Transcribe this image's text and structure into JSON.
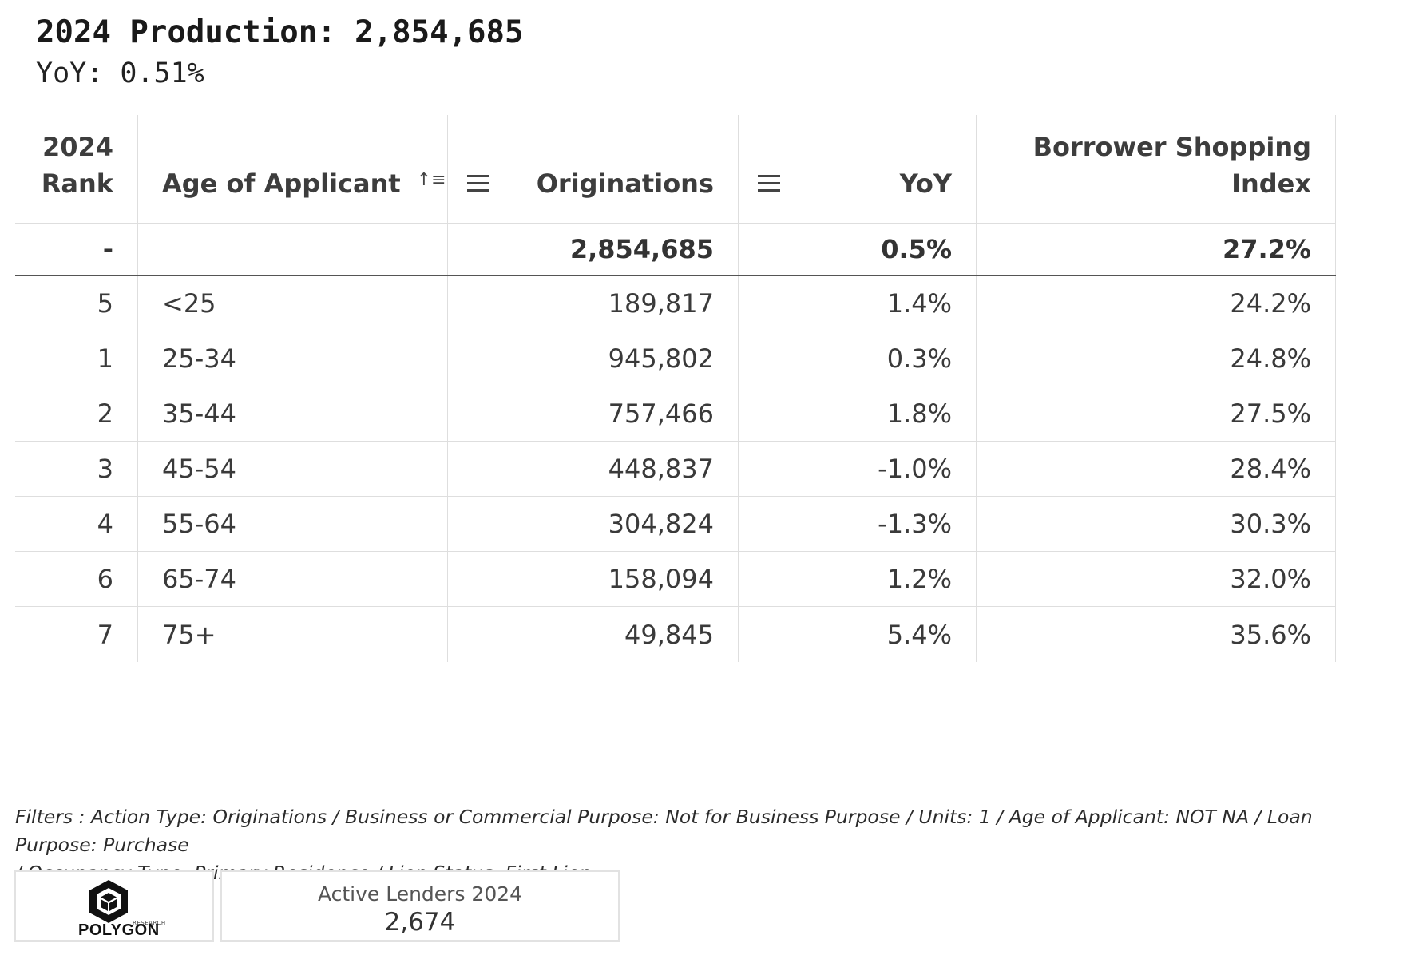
{
  "header": {
    "title": "2024 Production: 2,854,685",
    "subtitle": "YoY: 0.51%"
  },
  "table": {
    "columns": {
      "rank_line1": "2024",
      "rank_line2": "Rank",
      "age": "Age of Applicant",
      "originations": "Originations",
      "yoy": "YoY",
      "bsi_line1": "Borrower Shopping",
      "bsi_line2": "Index"
    },
    "total": {
      "rank": "-",
      "age": "",
      "originations": "2,854,685",
      "yoy": "0.5%",
      "bsi": "27.2%"
    },
    "rows": [
      {
        "rank": "5",
        "age": "<25",
        "originations": "189,817",
        "yoy": "1.4%",
        "bsi": "24.2%"
      },
      {
        "rank": "1",
        "age": "25-34",
        "originations": "945,802",
        "yoy": "0.3%",
        "bsi": "24.8%"
      },
      {
        "rank": "2",
        "age": "35-44",
        "originations": "757,466",
        "yoy": "1.8%",
        "bsi": "27.5%"
      },
      {
        "rank": "3",
        "age": "45-54",
        "originations": "448,837",
        "yoy": "-1.0%",
        "bsi": "28.4%"
      },
      {
        "rank": "4",
        "age": "55-64",
        "originations": "304,824",
        "yoy": "-1.3%",
        "bsi": "30.3%"
      },
      {
        "rank": "6",
        "age": "65-74",
        "originations": "158,094",
        "yoy": "1.2%",
        "bsi": "32.0%"
      },
      {
        "rank": "7",
        "age": "75+",
        "originations": "49,845",
        "yoy": "5.4%",
        "bsi": "35.6%"
      }
    ]
  },
  "filters": {
    "line1": "Filters : Action Type: Originations / Business or Commercial Purpose: Not for Business Purpose / Units: 1 / Age of Applicant: NOT NA / Loan Purpose: Purchase",
    "line2": "/ Occupancy Type: Primary Residence / Lien Status: First Lien"
  },
  "logo": {
    "small_text": "RESEARCH",
    "name": "POLYGON",
    "icon": "polygon-logo-icon"
  },
  "kpi": {
    "label": "Active Lenders 2024",
    "value": "2,674"
  },
  "icons": {
    "sort": "sort-ascending-icon",
    "column_menu": "column-menu-icon"
  }
}
